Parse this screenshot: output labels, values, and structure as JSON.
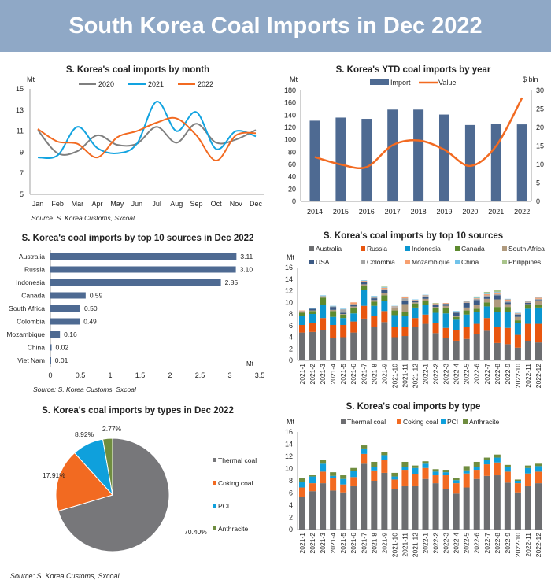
{
  "header": {
    "title": "South Korea Coal Imports in Dec 2022"
  },
  "chart_data": [
    {
      "id": "monthly",
      "type": "line",
      "title": "S. Korea's coal imports by month",
      "ylabel": "Mt",
      "ylim": [
        5,
        15
      ],
      "yticks": [
        5,
        7,
        9,
        11,
        13,
        15
      ],
      "categories": [
        "Jan",
        "Feb",
        "Mar",
        "Apr",
        "May",
        "Jun",
        "Jul",
        "Aug",
        "Sep",
        "Oct",
        "Nov",
        "Dec"
      ],
      "series": [
        {
          "name": "2020",
          "color": "#7f7f7f",
          "values": [
            11.1,
            8.9,
            9.1,
            10.6,
            9.7,
            9.8,
            11.4,
            9.9,
            11.7,
            9.9,
            10.2,
            11.1
          ]
        },
        {
          "name": "2021",
          "color": "#12a3e0",
          "values": [
            8.5,
            8.7,
            11.4,
            9.4,
            8.9,
            9.8,
            13.8,
            11.0,
            12.8,
            9.3,
            11.0,
            10.5
          ]
        },
        {
          "name": "2022",
          "color": "#f26a21",
          "values": [
            11.2,
            10.0,
            9.8,
            8.5,
            10.4,
            11.0,
            11.8,
            12.2,
            10.6,
            8.2,
            10.6,
            10.8
          ]
        }
      ],
      "legend": "top",
      "source": "Source: S. Korea Customs, Sxcoal"
    },
    {
      "id": "ytd",
      "type": "bar+line",
      "title": "S. Korea's YTD coal imports by year",
      "ylabel": "Mt",
      "y2label": "$ bln",
      "ylim": [
        0,
        180
      ],
      "y2lim": [
        0,
        30
      ],
      "categories": [
        "2014",
        "2015",
        "2016",
        "2017",
        "2018",
        "2019",
        "2020",
        "2021",
        "2022"
      ],
      "series": [
        {
          "name": "Import",
          "type": "bar",
          "axis": "left",
          "color": "#4e6a92",
          "values": [
            131,
            136,
            134,
            149,
            149,
            141,
            124,
            126,
            125
          ]
        },
        {
          "name": "Value",
          "type": "line",
          "axis": "right",
          "color": "#f26a21",
          "values": [
            12,
            10,
            9.3,
            15.2,
            16.5,
            14,
            9.6,
            15,
            28
          ]
        }
      ],
      "legend": "top"
    },
    {
      "id": "top10dec",
      "type": "bar",
      "orientation": "horizontal",
      "title": "S. Korea's coal imports by top 10 sources in Dec 2022",
      "xlabel": "Mt",
      "xlim": [
        0,
        3.5
      ],
      "categories": [
        "Australia",
        "Russia",
        "Indonesia",
        "Canada",
        "South Africa",
        "Colombia",
        "Mozambique",
        "China",
        "Viet Nam"
      ],
      "values": [
        3.11,
        3.1,
        2.85,
        0.59,
        0.5,
        0.49,
        0.16,
        0.02,
        0.01
      ],
      "data_labels": [
        "3.11",
        "3.10",
        "2.85",
        "0.59",
        "0.50",
        "0.49",
        "0.16",
        "0.02",
        "0.01"
      ],
      "color": "#4e6a92",
      "source": "Source: S. Korea Customs. Sxcoal"
    },
    {
      "id": "top10monthly",
      "type": "bar",
      "stacked": true,
      "title": "S. Korea's coal imports by top 10 sources",
      "ylabel": "Mt",
      "ylim": [
        0,
        16
      ],
      "categories": [
        "2021-1",
        "2021-2",
        "2021-3",
        "2021-4",
        "2021-5",
        "2021-6",
        "2021-7",
        "2021-8",
        "2021-9",
        "2021-10",
        "2021-11",
        "2021-12",
        "2022-1",
        "2022-2",
        "2022-3",
        "2022-4",
        "2022-5",
        "2022-6",
        "2022-7",
        "2022-8",
        "2022-9",
        "2022-10",
        "2022-11",
        "2022-12"
      ],
      "series": [
        {
          "name": "Australia",
          "color": "#6d6e71",
          "values": [
            4.8,
            4.9,
            5.2,
            3.8,
            4.0,
            4.8,
            7.2,
            5.8,
            6.6,
            4.0,
            4.2,
            5.8,
            6.3,
            4.7,
            3.8,
            3.4,
            3.7,
            4.5,
            5.1,
            3.0,
            2.8,
            2.2,
            3.3,
            3.1
          ]
        },
        {
          "name": "Russia",
          "color": "#e8560f",
          "values": [
            1.3,
            1.5,
            2.1,
            2.3,
            2.1,
            1.9,
            2.2,
            1.9,
            1.9,
            1.8,
            1.6,
            1.5,
            1.6,
            1.7,
            1.8,
            1.8,
            2.1,
            1.8,
            2.2,
            2.7,
            2.8,
            2.2,
            3.0,
            3.2
          ]
        },
        {
          "name": "Indonesia",
          "color": "#0b96d0",
          "values": [
            1.5,
            1.6,
            2.3,
            1.4,
            1.2,
            1.4,
            2.7,
            1.7,
            1.7,
            2.0,
            1.9,
            1.8,
            1.6,
            1.8,
            2.5,
            1.8,
            2.1,
            2.0,
            2.0,
            2.6,
            2.7,
            2.0,
            2.6,
            2.8
          ]
        },
        {
          "name": "Canada",
          "color": "#5d8a2f",
          "values": [
            0.6,
            0.5,
            1.2,
            1.0,
            0.6,
            1.0,
            0.7,
            0.7,
            1.0,
            0.8,
            0.6,
            0.7,
            0.8,
            0.8,
            1.0,
            0.5,
            0.7,
            0.6,
            0.7,
            0.9,
            0.9,
            0.5,
            0.7,
            0.5
          ]
        },
        {
          "name": "South Africa",
          "color": "#b09a7e",
          "values": [
            0.1,
            0.1,
            0.1,
            0.2,
            0.1,
            0.2,
            0.3,
            0.3,
            0.4,
            0.4,
            1.4,
            0.2,
            0.3,
            0.2,
            0.3,
            0.1,
            0.5,
            0.6,
            0.6,
            1.3,
            0.5,
            0.6,
            0.1,
            0.6
          ]
        },
        {
          "name": "USA",
          "color": "#3c5a85",
          "values": [
            0.1,
            0.3,
            0.1,
            0.5,
            0.2,
            0.3,
            0.4,
            0.3,
            0.5,
            0.1,
            0.5,
            0.3,
            0.4,
            0.3,
            0.3,
            0.6,
            0.8,
            0.9,
            0.3,
            0.7,
            0.3,
            0.4,
            0.2,
            0.2
          ]
        },
        {
          "name": "Colombia",
          "color": "#a6a6a6",
          "values": [
            0.1,
            0,
            0.1,
            0.1,
            0.6,
            0.1,
            0.1,
            0.2,
            0.2,
            0.1,
            0.5,
            0,
            0.1,
            0.2,
            0.1,
            0.1,
            0.1,
            0.2,
            0.3,
            0.2,
            0.2,
            0.1,
            0.1,
            0.2
          ]
        },
        {
          "name": "Mozambique",
          "color": "#f7a070",
          "values": [
            0.1,
            0,
            0,
            0,
            0,
            0.3,
            0.1,
            0.1,
            0.2,
            0.1,
            0.2,
            0.1,
            0.1,
            0.1,
            0.1,
            0.1,
            0.1,
            0.1,
            0.2,
            0.3,
            0.3,
            0.1,
            0.1,
            0.2
          ]
        },
        {
          "name": "China",
          "color": "#71c3ea",
          "values": [
            0,
            0.1,
            0.1,
            0.1,
            0.1,
            0,
            0.1,
            0.1,
            0.1,
            0.1,
            0.1,
            0.1,
            0.1,
            0,
            0,
            0.1,
            0.1,
            0.1,
            0.1,
            0.1,
            0.1,
            0.1,
            0.1,
            0.1
          ]
        },
        {
          "name": "Philippines",
          "color": "#a9c48b",
          "values": [
            0,
            0,
            0,
            0,
            0,
            0,
            0,
            0,
            0.1,
            0,
            0,
            0,
            0,
            0.1,
            0,
            0,
            0.1,
            0.2,
            0.3,
            0.4,
            0,
            0,
            0,
            0
          ]
        }
      ],
      "legend": "top"
    },
    {
      "id": "typesdec",
      "type": "pie",
      "title": "S. Korea's coal imports by types in Dec 2022",
      "categories": [
        "Thermal coal",
        "Coking coal",
        "PCI",
        "Anthracite"
      ],
      "values": [
        70.4,
        17.91,
        8.92,
        2.77
      ],
      "data_labels": [
        "70.40%",
        "17.91%",
        "8.92%",
        "2.77%"
      ],
      "colors": [
        "#77777a",
        "#f26a21",
        "#0fa0dc",
        "#6f8d3f"
      ],
      "legend": "right",
      "source": "Source: S. Korea Customs, Sxcoal"
    },
    {
      "id": "bytype",
      "type": "bar",
      "stacked": true,
      "title": "S. Korea's coal imports by type",
      "ylabel": "Mt",
      "ylim": [
        0,
        16
      ],
      "categories": [
        "2021-1",
        "2021-2",
        "2021-3",
        "2021-4",
        "2021-5",
        "2021-6",
        "2021-7",
        "2021-8",
        "2021-9",
        "2021-10",
        "2021-11",
        "2021-12",
        "2022-1",
        "2022-2",
        "2022-3",
        "2022-4",
        "2022-5",
        "2022-6",
        "2022-7",
        "2022-8",
        "2022-9",
        "2022-10",
        "2022-11",
        "2022-12"
      ],
      "series": [
        {
          "name": "Thermal coal",
          "color": "#6d6e71",
          "values": [
            5.3,
            6.3,
            7.6,
            6.4,
            6.1,
            7.1,
            10.8,
            8.0,
            9.3,
            6.6,
            7.1,
            7.1,
            8.3,
            7.6,
            6.6,
            5.9,
            6.9,
            8.3,
            8.8,
            8.9,
            7.7,
            6.1,
            7.1,
            7.6
          ]
        },
        {
          "name": "Coking coal",
          "color": "#f26a21",
          "values": [
            1.6,
            1.3,
            1.9,
            2.0,
            1.3,
            1.5,
            1.6,
            1.7,
            2.1,
            1.6,
            2.7,
            2.0,
            1.8,
            1.3,
            2.3,
            1.7,
            2.3,
            1.5,
            1.9,
            2.1,
            1.8,
            1.5,
            2.1,
            1.9
          ]
        },
        {
          "name": "PCI",
          "color": "#0fa0dc",
          "values": [
            0.9,
            1.1,
            1.3,
            0.4,
            0.9,
            1.0,
            0.9,
            0.6,
            0.8,
            0.5,
            0.5,
            1.0,
            0.7,
            0.6,
            0.5,
            0.5,
            0.5,
            0.5,
            0.7,
            0.8,
            0.7,
            0.4,
            0.9,
            0.9
          ]
        },
        {
          "name": "Anthracite",
          "color": "#6f8d3f",
          "values": [
            0.6,
            0.2,
            0.6,
            0.6,
            0.6,
            0.5,
            0.5,
            0.8,
            0.5,
            0.6,
            0.8,
            0.4,
            0.4,
            0.4,
            0.4,
            0.3,
            0.7,
            0.8,
            0.4,
            0.5,
            0.4,
            0.2,
            0.4,
            0.4
          ]
        }
      ],
      "legend": "top"
    }
  ]
}
